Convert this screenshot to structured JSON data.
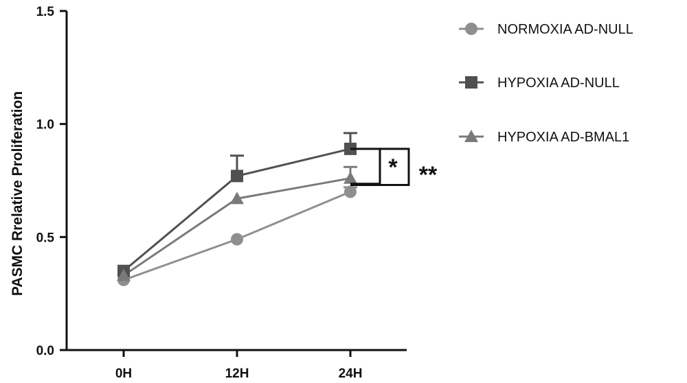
{
  "chart_data": {
    "type": "line",
    "categories": [
      "0H",
      "12H",
      "24H"
    ],
    "ylabel": "PASMC Rrelative Proliferation",
    "xlabel": "",
    "ylim": [
      0,
      1.5
    ],
    "y_ticks": [
      "0.0",
      "0.5",
      "1.0",
      "1.5"
    ],
    "grid": false,
    "legend_position": "right",
    "series": [
      {
        "name": "NORMOXIA AD-NULL",
        "marker": "circle",
        "color": "#8f8f8f",
        "values": [
          0.31,
          0.49,
          0.7
        ],
        "errors": [
          0.01,
          0.01,
          0.02
        ]
      },
      {
        "name": "HYPOXIA AD-NULL",
        "marker": "square",
        "color": "#505050",
        "values": [
          0.35,
          0.77,
          0.89
        ],
        "errors": [
          0.01,
          0.09,
          0.07
        ]
      },
      {
        "name": "HYPOXIA AD-BMAL1",
        "marker": "triangle",
        "color": "#7a7a7a",
        "values": [
          0.33,
          0.67,
          0.76
        ],
        "errors": [
          0.01,
          0.0,
          0.05
        ]
      }
    ],
    "annotations": [
      {
        "label": "*",
        "compares": [
          "HYPOXIA AD-NULL",
          "HYPOXIA AD-BMAL1"
        ],
        "at": "24H"
      },
      {
        "label": "**",
        "compares": [
          "HYPOXIA AD-NULL",
          "NORMOXIA AD-NULL"
        ],
        "at": "24H"
      }
    ]
  }
}
